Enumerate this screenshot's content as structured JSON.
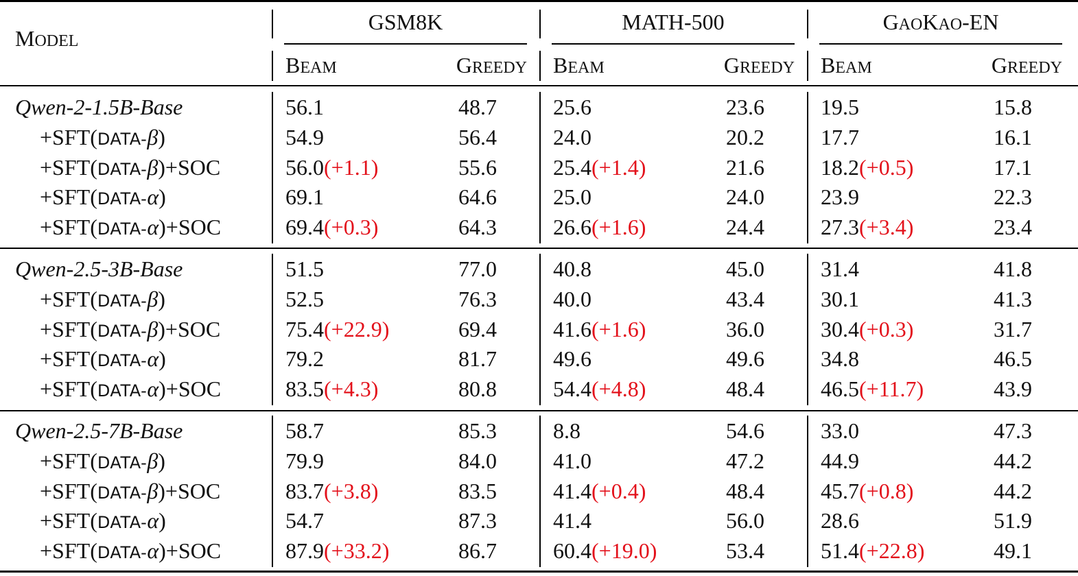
{
  "header": {
    "model_label": "Model",
    "datasets": [
      {
        "name": "GSM8K",
        "sub": [
          "Beam",
          "Greedy"
        ]
      },
      {
        "name": "MATH-500",
        "sub": [
          "Beam",
          "Greedy"
        ]
      },
      {
        "name": "GaoKao-EN",
        "sub": [
          "Beam",
          "Greedy"
        ]
      }
    ]
  },
  "colors": {
    "delta": "#e3111b",
    "text": "#111111",
    "rule": "#000000"
  },
  "groups": [
    {
      "base": "Qwen-2-1.5B-Base",
      "rows": [
        {
          "label": "base",
          "values": [
            [
              "56.1",
              ""
            ],
            [
              "48.7",
              ""
            ],
            [
              "25.6",
              ""
            ],
            [
              "23.6",
              ""
            ],
            [
              "19.5",
              ""
            ],
            [
              "15.8",
              ""
            ]
          ]
        },
        {
          "label": "+SFT(DATA-β)",
          "values": [
            [
              "54.9",
              ""
            ],
            [
              "56.4",
              ""
            ],
            [
              "24.0",
              ""
            ],
            [
              "20.2",
              ""
            ],
            [
              "17.7",
              ""
            ],
            [
              "16.1",
              ""
            ]
          ]
        },
        {
          "label": "+SFT(DATA-β)+SOC",
          "values": [
            [
              "56.0",
              "(+1.1)"
            ],
            [
              "55.6",
              ""
            ],
            [
              "25.4",
              "(+1.4)"
            ],
            [
              "21.6",
              ""
            ],
            [
              "18.2",
              "(+0.5)"
            ],
            [
              "17.1",
              ""
            ]
          ]
        },
        {
          "label": "+SFT(DATA-α)",
          "values": [
            [
              "69.1",
              ""
            ],
            [
              "64.6",
              ""
            ],
            [
              "25.0",
              ""
            ],
            [
              "24.0",
              ""
            ],
            [
              "23.9",
              ""
            ],
            [
              "22.3",
              ""
            ]
          ]
        },
        {
          "label": "+SFT(DATA-α)+SOC",
          "values": [
            [
              "69.4",
              "(+0.3)"
            ],
            [
              "64.3",
              ""
            ],
            [
              "26.6",
              "(+1.6)"
            ],
            [
              "24.4",
              ""
            ],
            [
              "27.3",
              "(+3.4)"
            ],
            [
              "23.4",
              ""
            ]
          ]
        }
      ]
    },
    {
      "base": "Qwen-2.5-3B-Base",
      "rows": [
        {
          "label": "base",
          "values": [
            [
              "51.5",
              ""
            ],
            [
              "77.0",
              ""
            ],
            [
              "40.8",
              ""
            ],
            [
              "45.0",
              ""
            ],
            [
              "31.4",
              ""
            ],
            [
              "41.8",
              ""
            ]
          ]
        },
        {
          "label": "+SFT(DATA-β)",
          "values": [
            [
              "52.5",
              ""
            ],
            [
              "76.3",
              ""
            ],
            [
              "40.0",
              ""
            ],
            [
              "43.4",
              ""
            ],
            [
              "30.1",
              ""
            ],
            [
              "41.3",
              ""
            ]
          ]
        },
        {
          "label": "+SFT(DATA-β)+SOC",
          "values": [
            [
              "75.4",
              "(+22.9)"
            ],
            [
              "69.4",
              ""
            ],
            [
              "41.6",
              "(+1.6)"
            ],
            [
              "36.0",
              ""
            ],
            [
              "30.4",
              "(+0.3)"
            ],
            [
              "31.7",
              ""
            ]
          ]
        },
        {
          "label": "+SFT(DATA-α)",
          "values": [
            [
              "79.2",
              ""
            ],
            [
              "81.7",
              ""
            ],
            [
              "49.6",
              ""
            ],
            [
              "49.6",
              ""
            ],
            [
              "34.8",
              ""
            ],
            [
              "46.5",
              ""
            ]
          ]
        },
        {
          "label": "+SFT(DATA-α)+SOC",
          "values": [
            [
              "83.5",
              "(+4.3)"
            ],
            [
              "80.8",
              ""
            ],
            [
              "54.4",
              "(+4.8)"
            ],
            [
              "48.4",
              ""
            ],
            [
              "46.5",
              "(+11.7)"
            ],
            [
              "43.9",
              ""
            ]
          ]
        }
      ]
    },
    {
      "base": "Qwen-2.5-7B-Base",
      "rows": [
        {
          "label": "base",
          "values": [
            [
              "58.7",
              ""
            ],
            [
              "85.3",
              ""
            ],
            [
              "8.8",
              ""
            ],
            [
              "54.6",
              ""
            ],
            [
              "33.0",
              ""
            ],
            [
              "47.3",
              ""
            ]
          ]
        },
        {
          "label": "+SFT(DATA-β)",
          "values": [
            [
              "79.9",
              ""
            ],
            [
              "84.0",
              ""
            ],
            [
              "41.0",
              ""
            ],
            [
              "47.2",
              ""
            ],
            [
              "44.9",
              ""
            ],
            [
              "44.2",
              ""
            ]
          ]
        },
        {
          "label": "+SFT(DATA-β)+SOC",
          "values": [
            [
              "83.7",
              "(+3.8)"
            ],
            [
              "83.5",
              ""
            ],
            [
              "41.4",
              "(+0.4)"
            ],
            [
              "48.4",
              ""
            ],
            [
              "45.7",
              "(+0.8)"
            ],
            [
              "44.2",
              ""
            ]
          ]
        },
        {
          "label": "+SFT(DATA-α)",
          "values": [
            [
              "54.7",
              ""
            ],
            [
              "87.3",
              ""
            ],
            [
              "41.4",
              ""
            ],
            [
              "56.0",
              ""
            ],
            [
              "28.6",
              ""
            ],
            [
              "51.9",
              ""
            ]
          ]
        },
        {
          "label": "+SFT(DATA-α)+SOC",
          "values": [
            [
              "87.9",
              "(+33.2)"
            ],
            [
              "86.7",
              ""
            ],
            [
              "60.4",
              "(+19.0)"
            ],
            [
              "53.4",
              ""
            ],
            [
              "51.4",
              "(+22.8)"
            ],
            [
              "49.1",
              ""
            ]
          ]
        }
      ]
    }
  ]
}
